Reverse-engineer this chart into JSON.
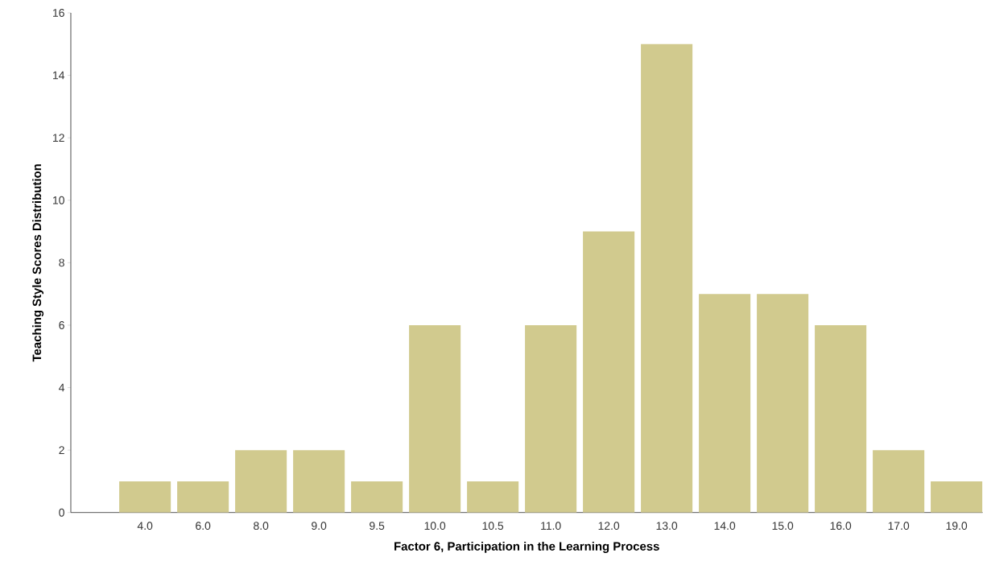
{
  "chart_data": {
    "type": "bar",
    "xlabel": "Factor 6, Participation in the Learning Process",
    "ylabel": "Teaching Style Scores Distribution",
    "categories": [
      "4.0",
      "6.0",
      "8.0",
      "9.0",
      "9.5",
      "10.0",
      "10.5",
      "11.0",
      "12.0",
      "13.0",
      "14.0",
      "15.0",
      "16.0",
      "17.0",
      "19.0"
    ],
    "values": [
      1,
      1,
      2,
      2,
      1,
      6,
      1,
      6,
      9,
      15,
      7,
      7,
      6,
      2,
      1
    ],
    "color": "#d1ca8e",
    "ylim": [
      0,
      16
    ],
    "yticks": [
      0,
      2,
      4,
      6,
      8,
      10,
      12,
      14,
      16
    ]
  }
}
